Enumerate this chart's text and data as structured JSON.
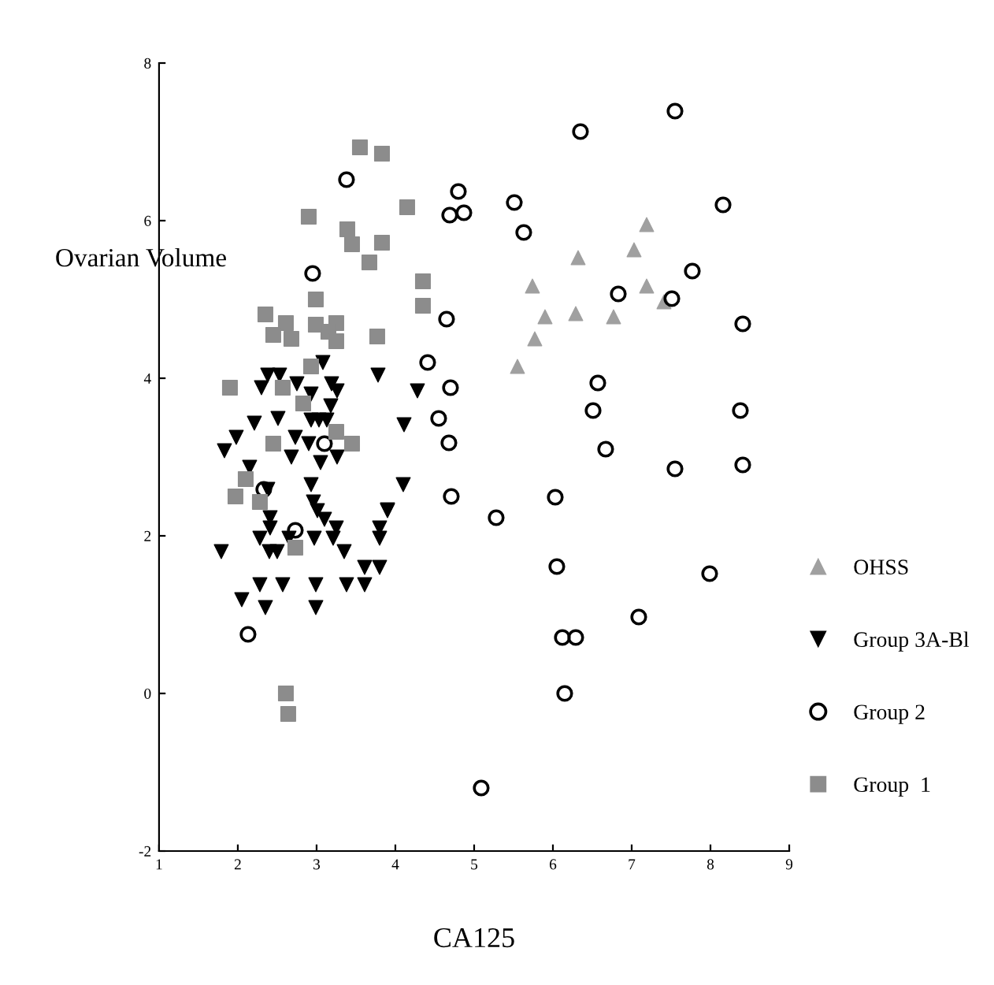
{
  "chart_data": {
    "type": "scatter",
    "xlabel": "CA125",
    "ylabel": "Ovarian Volume",
    "xlim": [
      1,
      9
    ],
    "ylim": [
      -2,
      8
    ],
    "xticks": [
      1,
      2,
      3,
      4,
      5,
      6,
      7,
      8,
      9
    ],
    "yticks": [
      -2,
      0,
      2,
      4,
      6,
      8
    ],
    "grid": false,
    "legend": "right",
    "series": [
      {
        "name": "OHSS",
        "color": "#a0a0a0",
        "marker": "triangle",
        "x": [
          7.19,
          7.03,
          6.32,
          5.74,
          7.19,
          5.9,
          6.29,
          6.77,
          7.41,
          5.77,
          5.55
        ],
        "values": [
          5.95,
          5.63,
          5.53,
          5.17,
          5.17,
          4.78,
          4.82,
          4.78,
          4.97,
          4.5,
          4.15
        ]
      },
      {
        "name": "Group 3A-Bl",
        "color": "#000000",
        "marker": "triangle_down",
        "x": [
          3.08,
          3.31,
          3.78,
          4.28,
          2.38,
          2.53,
          2.3,
          2.75,
          2.93,
          3.19,
          3.26,
          3.18,
          3.13,
          2.93,
          3.03,
          2.51,
          2.21,
          2.73,
          2.9,
          3.05,
          3.26,
          2.68,
          1.98,
          1.83,
          2.15,
          4.11,
          4.1,
          2.93,
          3.9,
          2.38,
          2.41,
          2.41,
          2.96,
          3.01,
          3.1,
          3.25,
          3.9,
          3.8,
          2.28,
          2.65,
          2.97,
          3.21,
          3.8,
          1.79,
          2.4,
          2.5,
          3.35,
          3.61,
          3.8,
          2.28,
          2.57,
          2.99,
          3.38,
          3.61,
          2.05,
          2.35,
          2.99
        ],
        "values": [
          4.2,
          null,
          4.04,
          3.84,
          4.04,
          4.04,
          3.88,
          3.93,
          3.8,
          3.93,
          3.84,
          3.65,
          3.47,
          3.47,
          3.47,
          3.49,
          3.43,
          3.25,
          3.17,
          2.93,
          3.0,
          3.0,
          3.25,
          3.08,
          2.87,
          3.41,
          2.65,
          2.65,
          2.33,
          2.59,
          2.23,
          2.1,
          2.43,
          2.32,
          2.21,
          2.1,
          2.32,
          2.1,
          1.97,
          1.97,
          1.97,
          1.97,
          1.97,
          1.8,
          1.8,
          1.8,
          1.8,
          1.6,
          1.6,
          1.38,
          1.38,
          1.38,
          1.38,
          1.38,
          1.19,
          1.09,
          1.09
        ]
      },
      {
        "name": "Group 2",
        "color": "#000000",
        "marker": "circle_open",
        "x": [
          7.55,
          6.35,
          4.8,
          4.69,
          4.87,
          5.51,
          5.63,
          8.16,
          7.77,
          6.83,
          7.51,
          8.41,
          4.65,
          4.7,
          4.55,
          4.41,
          4.68,
          4.71,
          6.51,
          6.57,
          8.38,
          6.67,
          7.55,
          8.41,
          6.03,
          5.28,
          6.05,
          7.99,
          7.09,
          6.12,
          6.29,
          6.15,
          5.09,
          3.38,
          2.95,
          2.33,
          2.73,
          2.13,
          3.1
        ],
        "values": [
          7.39,
          7.13,
          6.37,
          6.07,
          6.1,
          6.23,
          5.85,
          6.2,
          5.36,
          5.07,
          5.01,
          4.69,
          4.75,
          3.88,
          3.49,
          4.2,
          3.18,
          2.5,
          3.59,
          3.94,
          3.59,
          3.1,
          2.85,
          2.9,
          2.49,
          2.23,
          1.61,
          1.52,
          0.97,
          0.71,
          0.71,
          0.0,
          -1.2,
          6.52,
          5.33,
          2.59,
          2.07,
          0.75,
          3.17
        ]
      },
      {
        "name": "Group  1",
        "color": "#8c8c8c",
        "marker": "square",
        "x": [
          3.55,
          3.83,
          4.15,
          2.9,
          3.39,
          3.45,
          3.83,
          3.67,
          4.35,
          4.35,
          2.99,
          2.35,
          2.61,
          2.99,
          3.25,
          2.45,
          2.68,
          3.15,
          3.25,
          3.77,
          2.93,
          2.57,
          1.9,
          2.83,
          3.25,
          3.45,
          2.45,
          2.1,
          1.97,
          2.28,
          2.73,
          2.61,
          2.64
        ],
        "values": [
          6.93,
          6.85,
          6.17,
          6.05,
          5.89,
          5.7,
          5.72,
          5.47,
          5.23,
          4.92,
          5.0,
          4.81,
          4.7,
          4.68,
          4.7,
          4.55,
          4.5,
          4.59,
          4.47,
          4.53,
          4.15,
          3.88,
          3.88,
          3.68,
          3.32,
          3.17,
          3.17,
          2.72,
          2.5,
          2.43,
          1.85,
          0.0,
          -0.26
        ]
      }
    ]
  }
}
